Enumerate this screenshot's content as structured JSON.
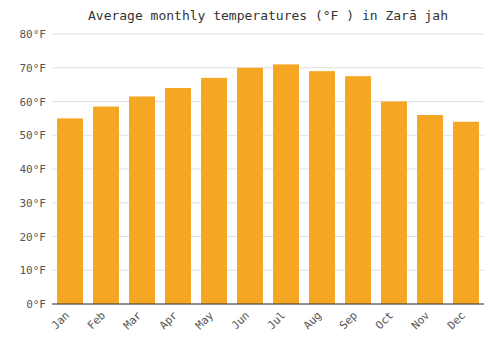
{
  "chart_data": {
    "type": "bar",
    "title": "Average monthly temperatures (°F ) in Zarā jah",
    "categories": [
      "Jan",
      "Feb",
      "Mar",
      "Apr",
      "May",
      "Jun",
      "Jul",
      "Aug",
      "Sep",
      "Oct",
      "Nov",
      "Dec"
    ],
    "values": [
      55,
      58.5,
      61.5,
      64,
      67,
      70,
      71,
      69,
      67.5,
      60,
      56,
      54
    ],
    "color": "#F5A623",
    "ylim": [
      0,
      80
    ],
    "yticks": [
      {
        "value": 0,
        "label": "0°F"
      },
      {
        "value": 10,
        "label": "10°F"
      },
      {
        "value": 20,
        "label": "20°F"
      },
      {
        "value": 30,
        "label": "30°F"
      },
      {
        "value": 40,
        "label": "40°F"
      },
      {
        "value": 50,
        "label": "50°F"
      },
      {
        "value": 60,
        "label": "60°F"
      },
      {
        "value": 70,
        "label": "70°F"
      },
      {
        "value": 80,
        "label": "80°F"
      }
    ],
    "grid": true
  }
}
